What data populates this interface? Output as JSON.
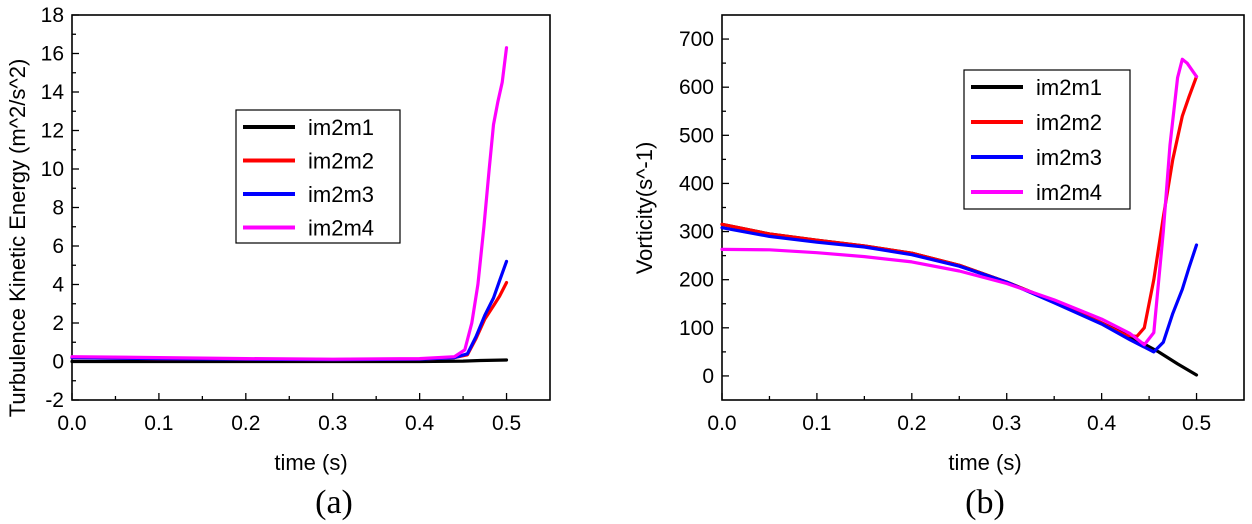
{
  "chart_data": [
    {
      "id": "a",
      "type": "line",
      "panel_label": "(a)",
      "title": "",
      "xlabel": "time (s)",
      "ylabel": "Turbulence Kinetic Energy (m^2/s^2)",
      "xlim": [
        0.0,
        0.55
      ],
      "ylim": [
        -2,
        18
      ],
      "xticks": [
        "0.0",
        "0.1",
        "0.2",
        "0.3",
        "0.4",
        "0.5"
      ],
      "yticks": [
        "-2",
        "0",
        "2",
        "4",
        "6",
        "8",
        "10",
        "12",
        "14",
        "16",
        "18"
      ],
      "legend_position": "center",
      "series": [
        {
          "name": "im2m1",
          "color": "#000000",
          "points": [
            [
              0.0,
              0.0
            ],
            [
              0.1,
              0.0
            ],
            [
              0.2,
              0.0
            ],
            [
              0.3,
              0.0
            ],
            [
              0.4,
              0.0
            ],
            [
              0.45,
              0.02
            ],
            [
              0.47,
              0.05
            ],
            [
              0.5,
              0.08
            ]
          ]
        },
        {
          "name": "im2m2",
          "color": "#ff0000",
          "points": [
            [
              0.0,
              0.2
            ],
            [
              0.1,
              0.15
            ],
            [
              0.2,
              0.12
            ],
            [
              0.3,
              0.1
            ],
            [
              0.4,
              0.12
            ],
            [
              0.44,
              0.2
            ],
            [
              0.455,
              0.35
            ],
            [
              0.465,
              1.2
            ],
            [
              0.475,
              2.2
            ],
            [
              0.485,
              2.9
            ],
            [
              0.492,
              3.4
            ],
            [
              0.5,
              4.1
            ]
          ]
        },
        {
          "name": "im2m3",
          "color": "#0000ff",
          "points": [
            [
              0.0,
              0.2
            ],
            [
              0.1,
              0.15
            ],
            [
              0.2,
              0.12
            ],
            [
              0.3,
              0.1
            ],
            [
              0.4,
              0.12
            ],
            [
              0.44,
              0.2
            ],
            [
              0.455,
              0.4
            ],
            [
              0.465,
              1.3
            ],
            [
              0.475,
              2.4
            ],
            [
              0.485,
              3.3
            ],
            [
              0.492,
              4.2
            ],
            [
              0.5,
              5.2
            ]
          ]
        },
        {
          "name": "im2m4",
          "color": "#ff00ff",
          "points": [
            [
              0.0,
              0.25
            ],
            [
              0.1,
              0.2
            ],
            [
              0.2,
              0.15
            ],
            [
              0.3,
              0.12
            ],
            [
              0.4,
              0.15
            ],
            [
              0.44,
              0.25
            ],
            [
              0.452,
              0.6
            ],
            [
              0.46,
              2.0
            ],
            [
              0.467,
              4.0
            ],
            [
              0.474,
              7.0
            ],
            [
              0.48,
              10.0
            ],
            [
              0.485,
              12.3
            ],
            [
              0.49,
              13.5
            ],
            [
              0.495,
              14.5
            ],
            [
              0.5,
              16.3
            ]
          ]
        }
      ]
    },
    {
      "id": "b",
      "type": "line",
      "panel_label": "(b)",
      "title": "",
      "xlabel": "time (s)",
      "ylabel": "Vorticity(s^-1)",
      "xlim": [
        0.0,
        0.55
      ],
      "ylim": [
        -50,
        750
      ],
      "xticks": [
        "0.0",
        "0.1",
        "0.2",
        "0.3",
        "0.4",
        "0.5"
      ],
      "yticks": [
        "0",
        "100",
        "200",
        "300",
        "400",
        "500",
        "600",
        "700"
      ],
      "legend_position": "top-right",
      "series": [
        {
          "name": "im2m1",
          "color": "#000000",
          "points": [
            [
              0.0,
              315
            ],
            [
              0.05,
              295
            ],
            [
              0.1,
              282
            ],
            [
              0.15,
              270
            ],
            [
              0.2,
              255
            ],
            [
              0.25,
              230
            ],
            [
              0.3,
              195
            ],
            [
              0.35,
              155
            ],
            [
              0.4,
              110
            ],
            [
              0.43,
              82
            ],
            [
              0.46,
              50
            ],
            [
              0.48,
              25
            ],
            [
              0.5,
              2
            ]
          ]
        },
        {
          "name": "im2m2",
          "color": "#ff0000",
          "points": [
            [
              0.0,
              315
            ],
            [
              0.05,
              295
            ],
            [
              0.1,
              282
            ],
            [
              0.15,
              270
            ],
            [
              0.2,
              255
            ],
            [
              0.25,
              230
            ],
            [
              0.3,
              195
            ],
            [
              0.35,
              155
            ],
            [
              0.4,
              110
            ],
            [
              0.425,
              85
            ],
            [
              0.437,
              82
            ],
            [
              0.445,
              100
            ],
            [
              0.455,
              200
            ],
            [
              0.465,
              330
            ],
            [
              0.475,
              450
            ],
            [
              0.485,
              540
            ],
            [
              0.492,
              580
            ],
            [
              0.5,
              622
            ]
          ]
        },
        {
          "name": "im2m3",
          "color": "#0000ff",
          "points": [
            [
              0.0,
              308
            ],
            [
              0.05,
              290
            ],
            [
              0.1,
              278
            ],
            [
              0.15,
              268
            ],
            [
              0.2,
              252
            ],
            [
              0.25,
              228
            ],
            [
              0.3,
              195
            ],
            [
              0.35,
              152
            ],
            [
              0.4,
              108
            ],
            [
              0.43,
              75
            ],
            [
              0.455,
              50
            ],
            [
              0.465,
              70
            ],
            [
              0.475,
              130
            ],
            [
              0.485,
              180
            ],
            [
              0.492,
              225
            ],
            [
              0.5,
              272
            ]
          ]
        },
        {
          "name": "im2m4",
          "color": "#ff00ff",
          "points": [
            [
              0.0,
              263
            ],
            [
              0.05,
              262
            ],
            [
              0.1,
              256
            ],
            [
              0.15,
              248
            ],
            [
              0.2,
              237
            ],
            [
              0.25,
              218
            ],
            [
              0.3,
              192
            ],
            [
              0.35,
              158
            ],
            [
              0.4,
              118
            ],
            [
              0.43,
              88
            ],
            [
              0.445,
              65
            ],
            [
              0.455,
              90
            ],
            [
              0.465,
              300
            ],
            [
              0.472,
              480
            ],
            [
              0.48,
              620
            ],
            [
              0.485,
              658
            ],
            [
              0.49,
              650
            ],
            [
              0.5,
              622
            ]
          ]
        }
      ]
    }
  ]
}
